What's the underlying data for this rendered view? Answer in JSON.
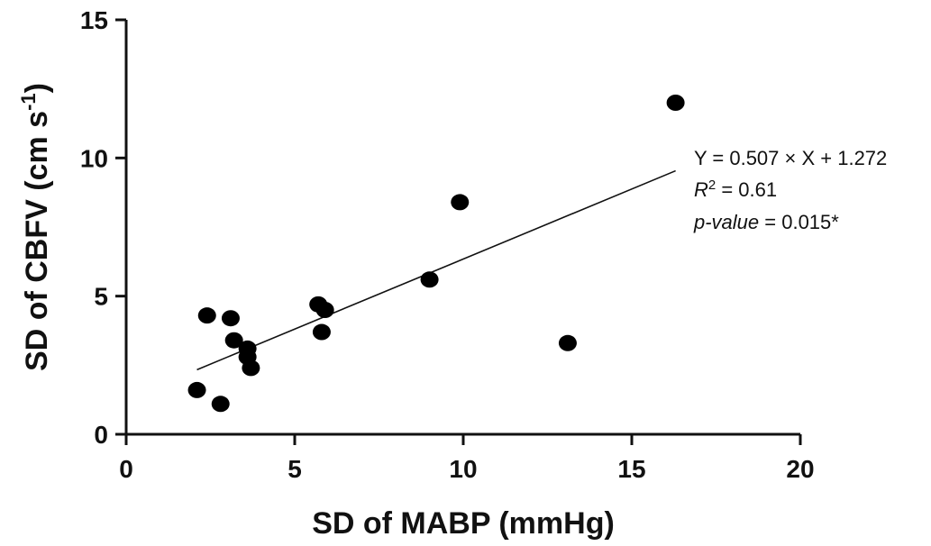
{
  "chart_data": {
    "type": "scatter",
    "xlabel": "SD of MABP (mmHg)",
    "ylabel": {
      "text": "SD of CBFV (cm s",
      "superscript": "-1",
      "suffix": ")"
    },
    "xlim": [
      0,
      20
    ],
    "ylim": [
      0,
      15
    ],
    "xticks": [
      "0",
      "5",
      "10",
      "15",
      "20"
    ],
    "yticks": [
      "0",
      "5",
      "10",
      "15"
    ],
    "grid": false,
    "points": [
      {
        "x": 2.1,
        "y": 1.6
      },
      {
        "x": 2.4,
        "y": 4.3
      },
      {
        "x": 2.8,
        "y": 1.1
      },
      {
        "x": 3.1,
        "y": 4.2
      },
      {
        "x": 3.2,
        "y": 3.4
      },
      {
        "x": 3.6,
        "y": 3.1
      },
      {
        "x": 3.6,
        "y": 2.8
      },
      {
        "x": 3.7,
        "y": 2.4
      },
      {
        "x": 5.7,
        "y": 4.7
      },
      {
        "x": 5.9,
        "y": 4.5
      },
      {
        "x": 5.8,
        "y": 3.7
      },
      {
        "x": 9.0,
        "y": 5.6
      },
      {
        "x": 9.9,
        "y": 8.4
      },
      {
        "x": 13.1,
        "y": 3.3
      },
      {
        "x": 16.3,
        "y": 12.0
      }
    ],
    "regression": {
      "slope": 0.507,
      "intercept": 1.272,
      "x_range": [
        2.1,
        16.3
      ]
    },
    "annotations": {
      "equation": "Y = 0.507 × X + 1.272",
      "r2_label": "R",
      "r2_sup": "2",
      "r2_value": " = 0.61",
      "p_label": "p-value",
      "p_value": " = 0.015*"
    }
  }
}
